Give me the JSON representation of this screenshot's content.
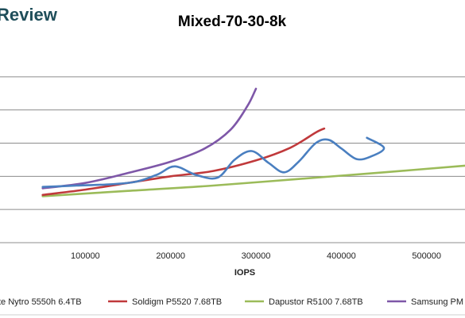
{
  "brand": {
    "logo_text": "Review"
  },
  "chart_data": {
    "type": "line",
    "title": "Mixed-70-30-8k",
    "xlabel": "IOPS",
    "ylabel": "",
    "xlim": [
      0,
      545000
    ],
    "ylim": [
      0,
      3
    ],
    "x_ticks": [
      "100000",
      "200000",
      "300000",
      "400000",
      "500000"
    ],
    "x_tick_values": [
      100000,
      200000,
      300000,
      400000,
      500000
    ],
    "y_grid_values": [
      0.5,
      1.0,
      1.5,
      2.0,
      2.5
    ],
    "grid": true,
    "legend_position": "bottom",
    "series": [
      {
        "name": "te Nytro 5550h 6.4TB",
        "color": "#4a7fc0",
        "points": [
          [
            50000,
            0.84
          ],
          [
            90000,
            0.86
          ],
          [
            130000,
            0.88
          ],
          [
            160000,
            0.92
          ],
          [
            185000,
            1.03
          ],
          [
            205000,
            1.15
          ],
          [
            230000,
            1.02
          ],
          [
            255000,
            0.98
          ],
          [
            275000,
            1.25
          ],
          [
            295000,
            1.38
          ],
          [
            315000,
            1.2
          ],
          [
            333000,
            1.06
          ],
          [
            350000,
            1.22
          ],
          [
            370000,
            1.5
          ],
          [
            385000,
            1.55
          ],
          [
            400000,
            1.42
          ],
          [
            418000,
            1.26
          ],
          [
            435000,
            1.3
          ],
          [
            450000,
            1.43
          ],
          [
            430000,
            1.58
          ]
        ]
      },
      {
        "name": "Soldigm P5520 7.68TB",
        "color": "#c0393b",
        "points": [
          [
            50000,
            0.72
          ],
          [
            100000,
            0.8
          ],
          [
            150000,
            0.9
          ],
          [
            200000,
            1.0
          ],
          [
            250000,
            1.08
          ],
          [
            300000,
            1.24
          ],
          [
            340000,
            1.43
          ],
          [
            370000,
            1.66
          ],
          [
            380000,
            1.72
          ]
        ]
      },
      {
        "name": "Dapustor R5100 7.68TB",
        "color": "#9bbb59",
        "points": [
          [
            50000,
            0.7
          ],
          [
            150000,
            0.78
          ],
          [
            250000,
            0.86
          ],
          [
            350000,
            0.96
          ],
          [
            450000,
            1.06
          ],
          [
            545000,
            1.16
          ]
        ]
      },
      {
        "name": "Samsung PM",
        "color": "#7e57a8",
        "points": [
          [
            50000,
            0.82
          ],
          [
            100000,
            0.9
          ],
          [
            150000,
            1.05
          ],
          [
            200000,
            1.22
          ],
          [
            240000,
            1.42
          ],
          [
            270000,
            1.7
          ],
          [
            290000,
            2.06
          ],
          [
            300000,
            2.32
          ]
        ]
      }
    ]
  }
}
